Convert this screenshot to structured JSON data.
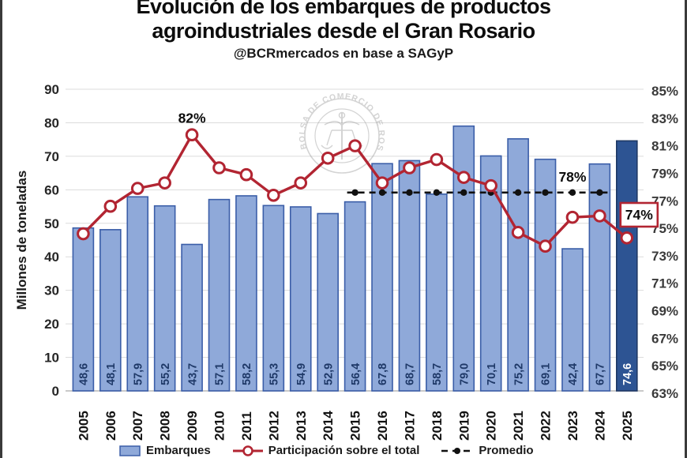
{
  "header": {
    "title_line1": "Evolución de los embarques de productos",
    "title_line2": "agroindustriales desde el Gran Rosario",
    "subtitle": "@BCRmercados en base a SAGyP"
  },
  "watermark": {
    "seal_text": "BOLSA DE COMERCIO DE ROSARIO"
  },
  "chart_data": {
    "type": "bar",
    "title": "Evolución de los embarques de productos agroindustriales desde el Gran Rosario",
    "subtitle": "@BCRmercados en base a SAGyP",
    "categories": [
      "2005",
      "2006",
      "2007",
      "2008",
      "2009",
      "2010",
      "2011",
      "2012",
      "2013",
      "2014",
      "2015",
      "2016",
      "2017",
      "2018",
      "2019",
      "2020",
      "2021",
      "2022",
      "2023",
      "2024",
      "2025"
    ],
    "series": [
      {
        "name": "Embarques",
        "type": "bar",
        "unit": "millones de toneladas",
        "values": [
          48.6,
          48.1,
          57.9,
          55.2,
          43.7,
          57.1,
          58.2,
          55.3,
          54.9,
          52.9,
          56.4,
          67.8,
          68.7,
          58.7,
          79.0,
          70.1,
          75.2,
          69.1,
          42.4,
          67.7,
          74.6
        ]
      },
      {
        "name": "Participación sobre el total",
        "type": "line",
        "unit": "%",
        "values": [
          74.6,
          76.6,
          77.9,
          78.3,
          81.8,
          79.4,
          78.9,
          77.4,
          78.3,
          80.1,
          81.0,
          78.3,
          79.4,
          80.0,
          78.7,
          78.1,
          74.7,
          73.7,
          75.8,
          75.9,
          74.3
        ]
      },
      {
        "name": "Promedio",
        "type": "dashed-line",
        "unit": "%",
        "value": 77.6,
        "from": "2015",
        "to": "2024"
      }
    ],
    "ylabel": "Millones de toneladas",
    "y_left": {
      "min": 0,
      "max": 90,
      "step": 10
    },
    "y_right": {
      "min": 63,
      "max": 85,
      "step": 2,
      "format": "percent"
    },
    "grid": true,
    "legend_position": "bottom",
    "decimal_separator": ",",
    "highlight_last_bar": true,
    "annotations": {
      "peak_label": "82%",
      "peak_year_index": 4,
      "average_label": "78%",
      "average_label_year_index": 18,
      "latest_label": "74%",
      "latest_year_index": 20
    },
    "colors": {
      "bar_fill": "#8FA9D9",
      "bar_stroke": "#3B5EA8",
      "bar_last_fill": "#2D5493",
      "bar_last_stroke": "#1F3864",
      "bar_label": "#1F3968",
      "bar_label_last": "#FFFFFF",
      "line": "#B22532",
      "marker_fill": "#FFFFFF",
      "average_line": "#111111",
      "grid": "#DCDCDC",
      "axis_text": "#262626",
      "annotation_box_stroke": "#B22532"
    }
  }
}
